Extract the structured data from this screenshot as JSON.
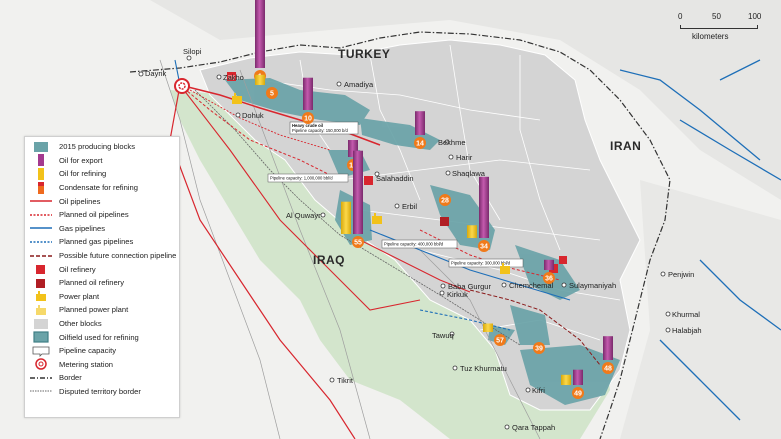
{
  "countries": {
    "turkey": "TURKEY",
    "iran": "IRAN",
    "iraq": "IRAQ"
  },
  "places": {
    "silopi": "Silopi",
    "dayrik": "Dayrik",
    "zakho": "Zakho",
    "amadiya": "Amadiya",
    "dohuk": "Dohuk",
    "bekhme": "Bekhme",
    "harir": "Harir",
    "salahaddin": "Salahaddin",
    "shaqlawa": "Shaqlawa",
    "erbil": "Erbil",
    "al_quwayr": "Al Quwayr",
    "baba_gurgur": "Baba Gurgur",
    "kirkuk": "Kirkuk",
    "chemchemal": "Chemchemal",
    "sulaymaniyah": "Sulaymaniyah",
    "penjwin": "Penjwin",
    "khurmal": "Khurmal",
    "halabjah": "Halabjah",
    "tawuq": "Tawuq",
    "tuz_khurmatu": "Tuz Khurmatu",
    "kifri": "Kifri",
    "tikrit": "Tikrit",
    "qara_tappah": "Qara Tappah"
  },
  "pipeline_capacity_labels": {
    "heavy_title": "Heavy crude oil",
    "heavy": "Pipeline capacity: 150,000 b/d",
    "main": "Pipeline capacity: 1,000,000 bbl/d",
    "north": "Pipeline capacity: 400,000 bbl/d",
    "south": "Pipeline capacity: 300,000 bbl/d"
  },
  "blocks": [
    {
      "id": "1",
      "export": 0.85,
      "refining": 0
    },
    {
      "id": "5",
      "export": 0,
      "refining": 0.12
    },
    {
      "id": "10",
      "export": 0.38,
      "refining": 0
    },
    {
      "id": "14",
      "export": 0.28,
      "refining": 0
    },
    {
      "id": "17",
      "export": 0.2,
      "refining": 0
    },
    {
      "id": "28",
      "export": 0,
      "refining": 0
    },
    {
      "id": "34",
      "export": 0.72,
      "refining": 0.15
    },
    {
      "id": "36",
      "export": 0.12,
      "refining": 0
    },
    {
      "id": "39",
      "export": 0,
      "refining": 0
    },
    {
      "id": "48",
      "export": 0.28,
      "refining": 0
    },
    {
      "id": "49",
      "export": 0.18,
      "refining": 0.12
    },
    {
      "id": "55",
      "export": 0.98,
      "refining": 0.38
    },
    {
      "id": "57",
      "export": 0,
      "refining": 0.1
    }
  ],
  "scale": {
    "ticks": [
      "0",
      "50",
      "100"
    ],
    "unit": "kilometers"
  },
  "legend": {
    "items": [
      {
        "key": "producing",
        "label": "2015 producing blocks"
      },
      {
        "key": "export",
        "label": "Oil for export"
      },
      {
        "key": "refining",
        "label": "Oil for refining"
      },
      {
        "key": "condensate",
        "label": "Condensate for refining"
      },
      {
        "key": "oil_pipe",
        "label": "Oil pipelines"
      },
      {
        "key": "planned_oil_pipe",
        "label": "Planned oil pipelines"
      },
      {
        "key": "gas_pipe",
        "label": "Gas pipelines"
      },
      {
        "key": "planned_gas_pipe",
        "label": "Planned gas pipelines"
      },
      {
        "key": "future_pipe",
        "label": "Possible future connection pipeline"
      },
      {
        "key": "refinery",
        "label": "Oil refinery"
      },
      {
        "key": "planned_refinery",
        "label": "Planned oil refinery"
      },
      {
        "key": "power",
        "label": "Power plant"
      },
      {
        "key": "planned_power",
        "label": "Planned power plant"
      },
      {
        "key": "other",
        "label": "Other blocks"
      },
      {
        "key": "oilfield_refining",
        "label": "Oilfield used for refining"
      },
      {
        "key": "capacity",
        "label": "Pipeline capacity"
      },
      {
        "key": "metering",
        "label": "Metering station"
      },
      {
        "key": "border",
        "label": "Border"
      },
      {
        "key": "disputed",
        "label": "Disputed territory border"
      }
    ]
  },
  "colors": {
    "producing": "#6aa3a8",
    "export": "#a43a8f",
    "refining": "#f2c21a",
    "condensate": "#ef6a1e",
    "oil_pipe": "#d8262e",
    "gas_pipe": "#1e6fb8",
    "other": "#d4d4d4",
    "disputed_zone": "#cfe3c8",
    "refinery": "#d8262e"
  }
}
